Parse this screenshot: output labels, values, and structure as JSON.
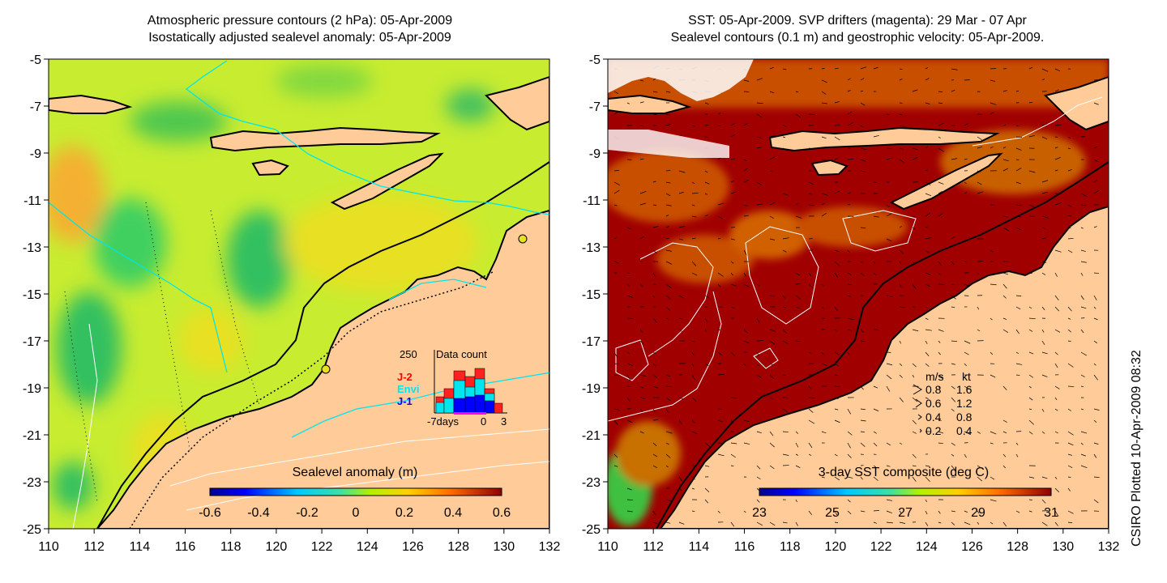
{
  "left_map": {
    "title_line1": "Atmospheric pressure contours (2 hPa): 05-Apr-2009",
    "title_line2": "Isostatically adjusted sealevel anomaly: 05-Apr-2009",
    "x_ticks": [
      "110",
      "112",
      "114",
      "116",
      "118",
      "120",
      "122",
      "124",
      "126",
      "128",
      "130",
      "132"
    ],
    "y_ticks": [
      "-5",
      "-7",
      "-9",
      "-11",
      "-13",
      "-15",
      "-17",
      "-19",
      "-21",
      "-23",
      "-25"
    ],
    "colorbar_label": "Sealevel anomaly (m)",
    "colorbar_ticks": [
      "-0.6",
      "-0.4",
      "-0.2",
      "0",
      "0.2",
      "0.4",
      "0.6"
    ],
    "data_count": {
      "title": "Data count",
      "max_label": "250",
      "x_labels": [
        "-7days",
        "0",
        "3"
      ],
      "legend": [
        {
          "label": "J-2",
          "color": "#ff0000"
        },
        {
          "label": "Envi",
          "color": "#00e5ee"
        },
        {
          "label": "J-1",
          "color": "#0000ff"
        }
      ]
    }
  },
  "right_map": {
    "title_line1": "SST: 05-Apr-2009. SVP drifters (magenta): 29 Mar - 07 Apr",
    "title_line2": "Sealevel contours (0.1 m) and geostrophic velocity: 05-Apr-2009.",
    "x_ticks": [
      "110",
      "112",
      "114",
      "116",
      "118",
      "120",
      "122",
      "124",
      "126",
      "128",
      "130",
      "132"
    ],
    "y_ticks": [
      "-5",
      "-7",
      "-9",
      "-11",
      "-13",
      "-15",
      "-17",
      "-19",
      "-21",
      "-23",
      "-25"
    ],
    "colorbar_label": "3-day SST composite (deg C)",
    "colorbar_ticks": [
      "23",
      "25",
      "27",
      "29",
      "31"
    ],
    "velocity_legend": {
      "header_ms": "m/s",
      "header_kt": "kt",
      "rows": [
        {
          "ms": "0.8",
          "kt": "1.6"
        },
        {
          "ms": "0.6",
          "kt": "1.2"
        },
        {
          "ms": "0.4",
          "kt": "0.8"
        },
        {
          "ms": "0.2",
          "kt": "0.4"
        }
      ]
    }
  },
  "side_label": "CSIRO Plotted 10-Apr-2009 08:32",
  "colors": {
    "land": "#ffcc99",
    "coast": "#000000",
    "contour": "#00e5ee",
    "sst_hot": "#a50000"
  }
}
